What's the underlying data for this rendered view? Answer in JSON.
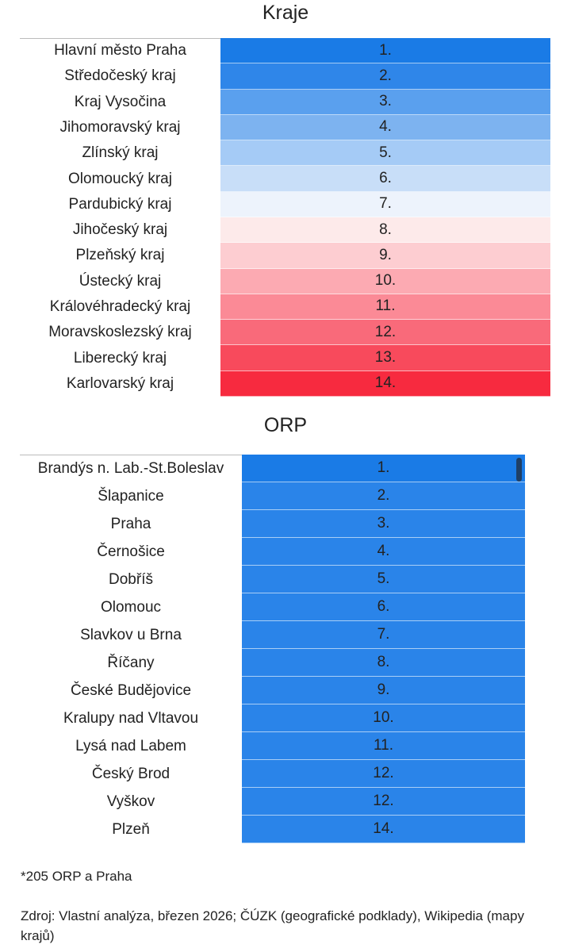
{
  "kraje": {
    "title": "Kraje",
    "rows": [
      {
        "name": "Hlavní město Praha",
        "rank": "1.",
        "color": "#1a7be6"
      },
      {
        "name": "Středočeský kraj",
        "rank": "2.",
        "color": "#2f86e9"
      },
      {
        "name": "Kraj Vysočina",
        "rank": "3.",
        "color": "#5aa0ee"
      },
      {
        "name": "Jihomoravský kraj",
        "rank": "4.",
        "color": "#7db3f0"
      },
      {
        "name": "Zlínský kraj",
        "rank": "5.",
        "color": "#a5cbf6"
      },
      {
        "name": "Olomoucký kraj",
        "rank": "6.",
        "color": "#c8def8"
      },
      {
        "name": "Pardubický kraj",
        "rank": "7.",
        "color": "#edf3fc"
      },
      {
        "name": "Jihočeský kraj",
        "rank": "8.",
        "color": "#fdeaea"
      },
      {
        "name": "Plzeňský kraj",
        "rank": "9.",
        "color": "#fdcdd1"
      },
      {
        "name": "Ústecký kraj",
        "rank": "10.",
        "color": "#fcaab2"
      },
      {
        "name": "Královéhradecký kraj",
        "rank": "11.",
        "color": "#fb8a96"
      },
      {
        "name": "Moravskoslezský kraj",
        "rank": "12.",
        "color": "#f96a7a"
      },
      {
        "name": "Liberecký kraj",
        "rank": "13.",
        "color": "#f84a5c"
      },
      {
        "name": "Karlovarský kraj",
        "rank": "14.",
        "color": "#f72a3f"
      }
    ]
  },
  "orp": {
    "title": "ORP",
    "rows": [
      {
        "name": "Brandýs n. Lab.-St.Boleslav",
        "rank": "1.",
        "color": "#1a7be6"
      },
      {
        "name": "Šlapanice",
        "rank": "2.",
        "color": "#2a84e9"
      },
      {
        "name": "Praha",
        "rank": "3.",
        "color": "#2a84e9"
      },
      {
        "name": "Černošice",
        "rank": "4.",
        "color": "#2a84e9"
      },
      {
        "name": "Dobříš",
        "rank": "5.",
        "color": "#2a84e9"
      },
      {
        "name": "Olomouc",
        "rank": "6.",
        "color": "#2a84e9"
      },
      {
        "name": "Slavkov u Brna",
        "rank": "7.",
        "color": "#2a84e9"
      },
      {
        "name": "Říčany",
        "rank": "8.",
        "color": "#2a84e9"
      },
      {
        "name": "České Budějovice",
        "rank": "9.",
        "color": "#2a84e9"
      },
      {
        "name": "Kralupy nad Vltavou",
        "rank": "10.",
        "color": "#2a84e9"
      },
      {
        "name": "Lysá nad Labem",
        "rank": "11.",
        "color": "#2a84e9"
      },
      {
        "name": "Český Brod",
        "rank": "12.",
        "color": "#2a84e9"
      },
      {
        "name": "Vyškov",
        "rank": "12.",
        "color": "#2a84e9"
      },
      {
        "name": "Plzeň",
        "rank": "14.",
        "color": "#2a84e9"
      }
    ]
  },
  "footnote": "*205 ORP a Praha",
  "source": "Zdroj: Vlastní analýza, březen 2026; ČÚZK (geografické podklady), Wikipedia (mapy krajů)"
}
